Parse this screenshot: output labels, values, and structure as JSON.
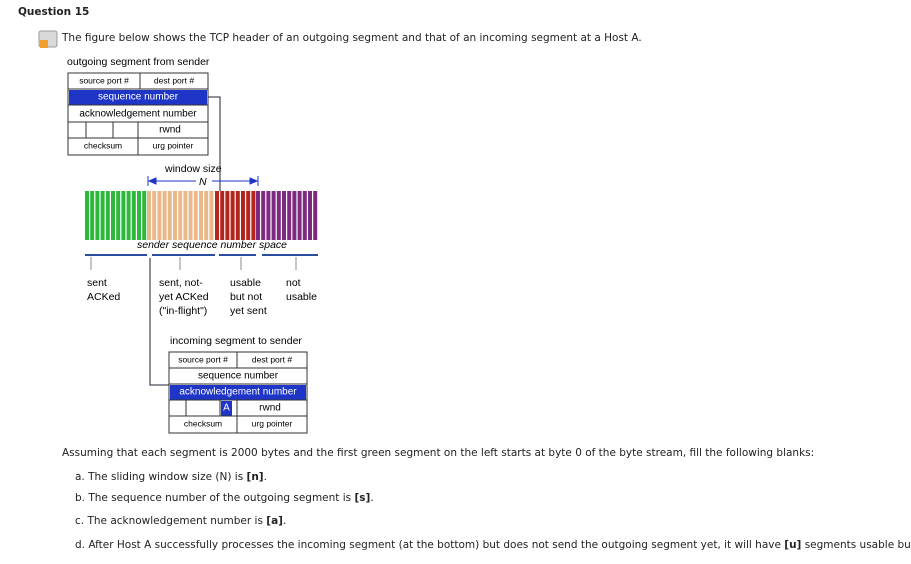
{
  "question": {
    "title": "Question 15",
    "intro": "The figure below shows the TCP header of an outgoing segment and that of an incoming segment at a Host A.",
    "figure": {
      "outgoing_title": "outgoing segment from sender",
      "outgoing": {
        "source_port": "source port #",
        "dest_port": "dest port #",
        "seq": "sequence number",
        "ack": "acknowledgement number",
        "rwnd": "rwnd",
        "checksum": "checksum",
        "urg": "urg pointer"
      },
      "window_label": "window size",
      "window_symbol": "N",
      "space_label": "sender sequence number space",
      "regions": [
        {
          "lines": [
            "sent",
            "ACKed"
          ]
        },
        {
          "lines": [
            "sent, not-",
            "yet ACKed",
            "(\"in-flight\")"
          ]
        },
        {
          "lines": [
            "usable",
            "but not",
            "yet sent"
          ]
        },
        {
          "lines": [
            "not",
            "usable"
          ]
        }
      ],
      "incoming_title": "incoming segment to sender",
      "incoming": {
        "source_port": "source port #",
        "dest_port": "dest port #",
        "seq": "sequence number",
        "ack": "acknowledgement number",
        "flag": "A",
        "rwnd": "rwnd",
        "checksum": "checksum",
        "urg": "urg pointer"
      }
    },
    "prompt": "Assuming that each segment is 2000 bytes and the first green segment on the left starts at byte 0 of the byte stream, fill the following blanks:",
    "items": [
      {
        "text": "a. The sliding window size (N) is ",
        "blank": "[n]",
        "end": "."
      },
      {
        "text": "b. The sequence number of the outgoing segment is ",
        "blank": "[s]",
        "end": "."
      },
      {
        "text": "c. The acknowledgement number is ",
        "blank": "[a]",
        "end": "."
      },
      {
        "text": "d. After Host A successfully processes the incoming segment (at the bottom) but does not send the outgoing segment yet, it will have ",
        "blank": "[u]",
        "end": " segments usable but not sent."
      }
    ]
  }
}
